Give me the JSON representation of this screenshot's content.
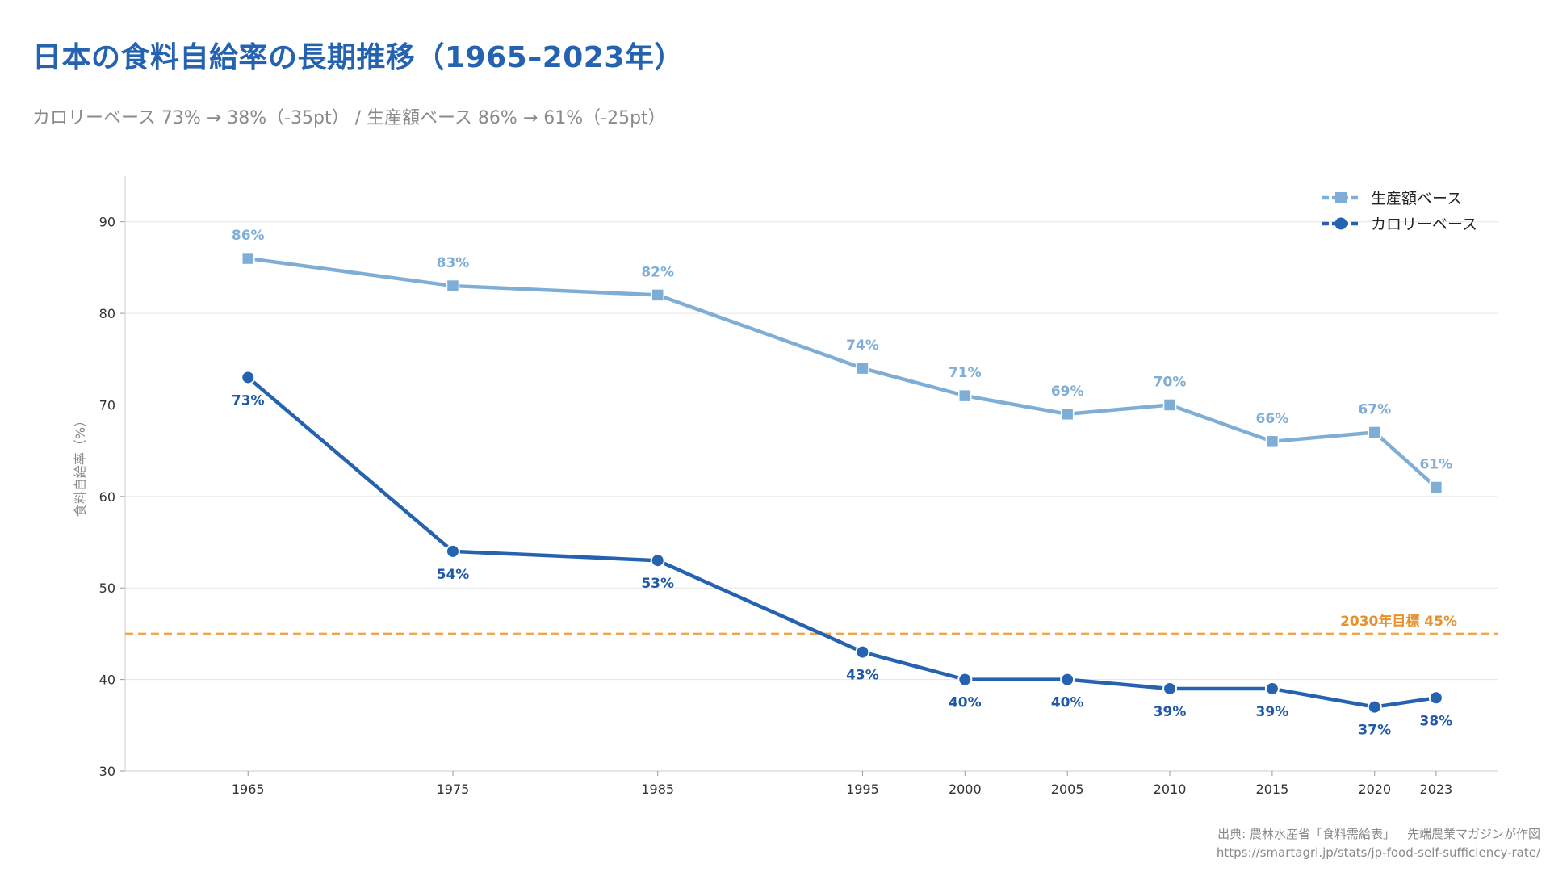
{
  "title": "日本の食料自給率の長期推移（1965–2023年）",
  "subtitle": "カロリーベース 73% → 38%（-35pt） / 生産額ベース 86% → 61%（-25pt）",
  "footer": {
    "source": "出典: 農林水産省「食料需給表」｜先端農業マガジンが作図",
    "url": "https://smartagri.jp/stats/jp-food-self-sufficiency-rate/"
  },
  "colors": {
    "title": "#2563b0",
    "production": "#7eaed6",
    "production_label": "#7eaed6",
    "calorie": "#2563b0",
    "calorie_label": "#1f5aa6",
    "target": "#f0a54a",
    "target_text": "#e8902a",
    "grid": "#e6e6e6",
    "axis": "#cccccc",
    "tick_text": "#333333",
    "muted": "#8a8a8a"
  },
  "chart_data": {
    "type": "line",
    "title": "日本の食料自給率の長期推移（1965–2023年）",
    "xlabel": "",
    "ylabel": "食料自給率（%）",
    "x": [
      1965,
      1975,
      1985,
      1995,
      2000,
      2005,
      2010,
      2015,
      2020,
      2023
    ],
    "xlim": [
      1959,
      2026
    ],
    "ylim": [
      30,
      95
    ],
    "yticks": [
      30,
      40,
      50,
      60,
      70,
      80,
      90
    ],
    "grid": true,
    "legend_position": "top-right",
    "series": [
      {
        "name": "生産額ベース",
        "key": "production",
        "marker": "square",
        "label_position": "above",
        "values": [
          86,
          83,
          82,
          74,
          71,
          69,
          70,
          66,
          67,
          61
        ],
        "labels": [
          "86%",
          "83%",
          "82%",
          "74%",
          "71%",
          "69%",
          "70%",
          "66%",
          "67%",
          "61%"
        ]
      },
      {
        "name": "カロリーベース",
        "key": "calorie",
        "marker": "circle",
        "label_position": "below",
        "values": [
          73,
          54,
          53,
          43,
          40,
          40,
          39,
          39,
          37,
          38
        ],
        "labels": [
          "73%",
          "54%",
          "53%",
          "43%",
          "40%",
          "40%",
          "39%",
          "39%",
          "37%",
          "38%"
        ]
      }
    ],
    "reference_line": {
      "value": 45,
      "label": "2030年目標 45%",
      "style": "dashed"
    }
  }
}
